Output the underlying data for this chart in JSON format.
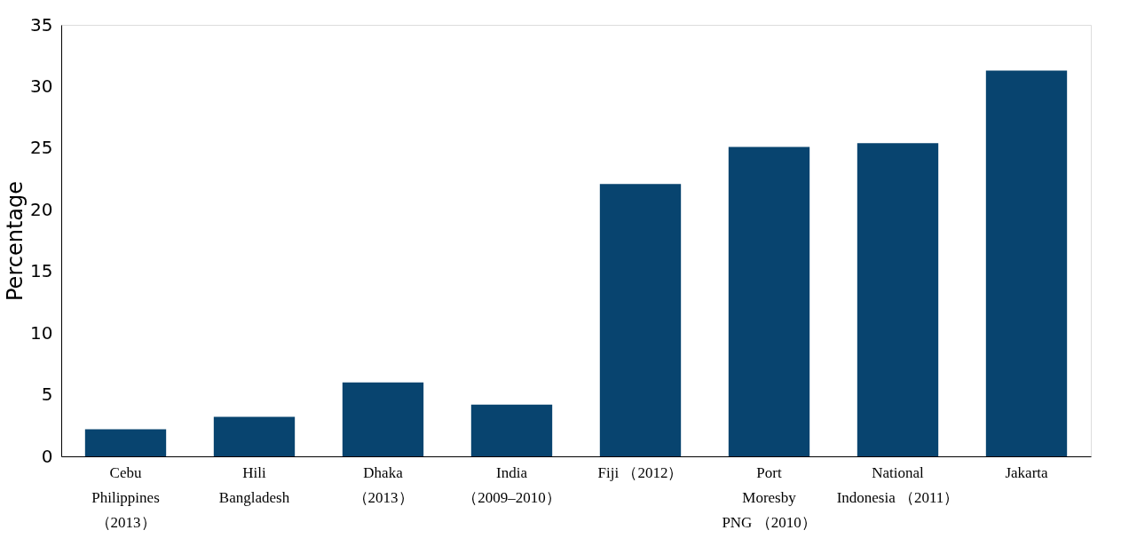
{
  "chart_data": {
    "type": "bar",
    "ylabel": "Percentage",
    "categories": [
      "Cebu\nPhilippines\n（2013）",
      "Hili\nBangladesh",
      "Dhaka\n（2013）",
      "India\n（2009–2010）",
      "Fiji （2012）",
      "Port\nMoresby\nPNG （2010）",
      "National\nIndonesia （2011）",
      "Jakarta"
    ],
    "values": [
      2.2,
      3.2,
      6.0,
      4.2,
      22.1,
      25.1,
      25.4,
      31.3
    ],
    "color": "#08446f",
    "ylim": [
      0,
      35
    ],
    "yticks": [
      0,
      5,
      10,
      15,
      20,
      25,
      30,
      35
    ],
    "grid": false
  }
}
